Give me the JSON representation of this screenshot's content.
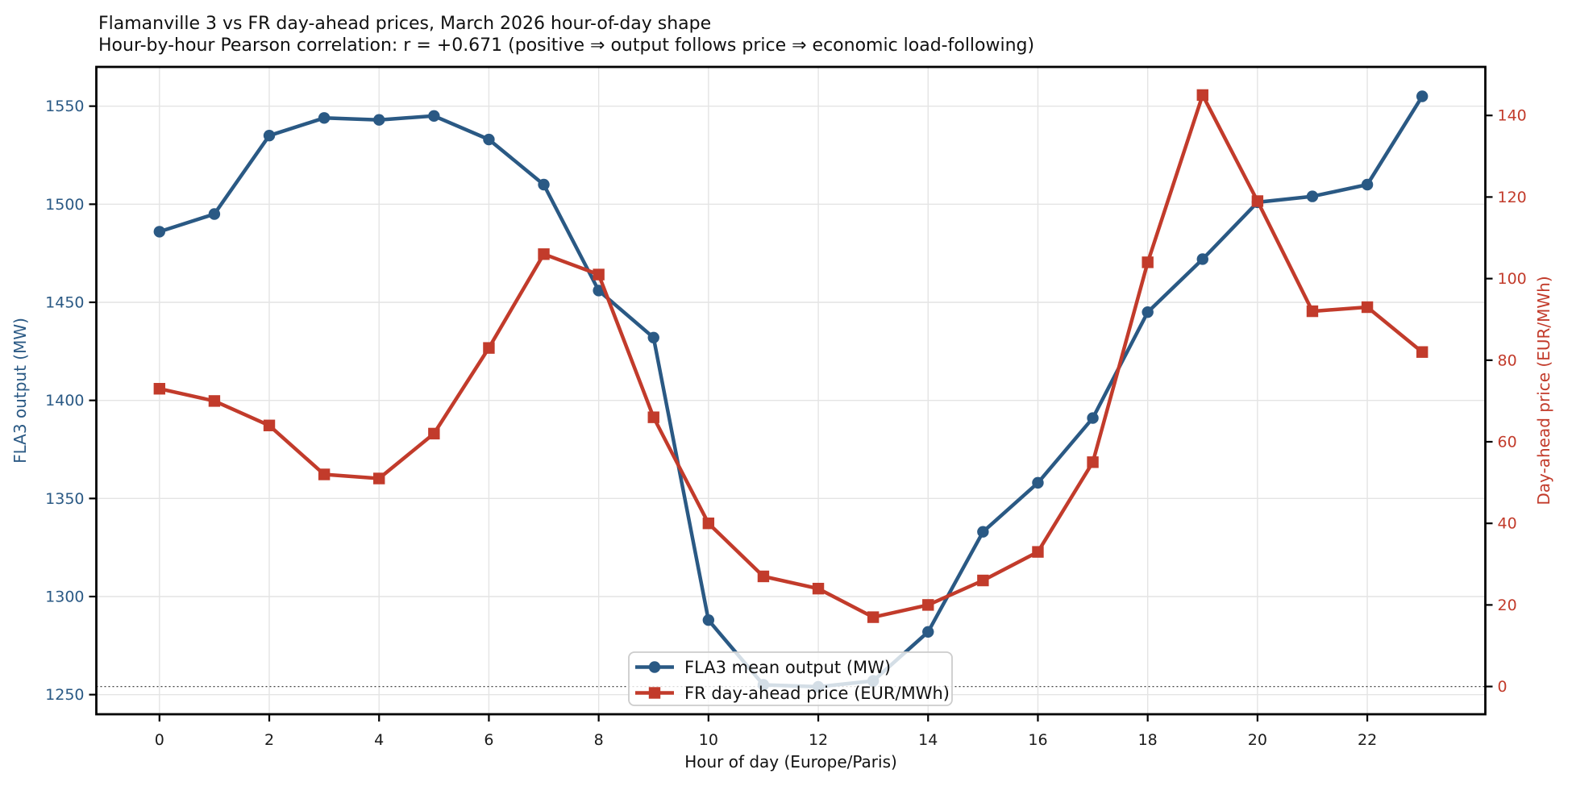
{
  "header": {
    "title": "Flamanville 3 vs FR day-ahead prices, March 2026 hour-of-day shape",
    "subtitle": "Hour-by-hour Pearson correlation: r = +0.671  (positive ⇒ output follows price ⇒ economic load-following)"
  },
  "chart_data": {
    "type": "line",
    "x": [
      0,
      1,
      2,
      3,
      4,
      5,
      6,
      7,
      8,
      9,
      10,
      11,
      12,
      13,
      14,
      15,
      16,
      17,
      18,
      19,
      20,
      21,
      22,
      23
    ],
    "series": [
      {
        "name": "FLA3 mean output (MW)",
        "axis": "left",
        "color": "#2a5984",
        "marker": "circle",
        "values": [
          1486,
          1495,
          1535,
          1544,
          1543,
          1545,
          1533,
          1510,
          1456,
          1432,
          1288,
          1255,
          1254,
          1257,
          1282,
          1333,
          1358,
          1391,
          1445,
          1472,
          1501,
          1504,
          1510,
          1555
        ]
      },
      {
        "name": "FR day-ahead price (EUR/MWh)",
        "axis": "right",
        "color": "#c23b2b",
        "marker": "square",
        "values": [
          73,
          70,
          64,
          52,
          51,
          62,
          83,
          106,
          101,
          66,
          40,
          27,
          24,
          17,
          20,
          26,
          33,
          55,
          104,
          145,
          119,
          92,
          93,
          82
        ]
      }
    ],
    "xlabel": "Hour of day (Europe/Paris)",
    "ylabel_left": "FLA3 output (MW)",
    "ylabel_right": "Day-ahead price (EUR/MWh)",
    "xticks": [
      0,
      2,
      4,
      6,
      8,
      10,
      12,
      14,
      16,
      18,
      20,
      22
    ],
    "yticks_left": [
      1250,
      1300,
      1350,
      1400,
      1450,
      1500,
      1550
    ],
    "yticks_right": [
      0,
      20,
      40,
      60,
      80,
      100,
      120,
      140
    ],
    "xlim": [
      -1.15,
      24.15
    ],
    "ylim_left": [
      1240,
      1570
    ],
    "ylim_right": [
      -6.8,
      151.9
    ],
    "grid": true,
    "zero_price_reference_line": 0,
    "legend_position": "lower center inside plot",
    "colors": {
      "left_axis_text": "#2a5984",
      "right_axis_text": "#c23b2b",
      "grid": "#e4e4e4",
      "spine": "#000000"
    }
  }
}
